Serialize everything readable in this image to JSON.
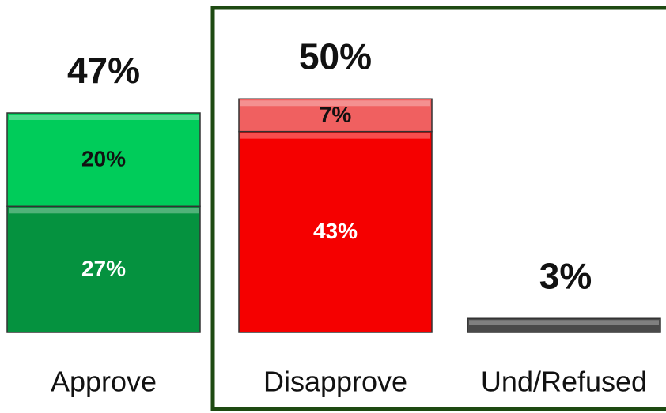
{
  "chart_data": {
    "type": "stacked_bar",
    "categories": [
      "Approve",
      "Disapprove",
      "Und/Refused"
    ],
    "series": [
      {
        "colors": [
          "#05923f",
          "#f50000",
          "#4a4a4a"
        ],
        "label_color": "#ffffff",
        "values": [
          27,
          43,
          3
        ],
        "value_labels": [
          "27%",
          "43%",
          null
        ]
      },
      {
        "colors": [
          "#00cc5a",
          "#f06060",
          null
        ],
        "label_color": "#111111",
        "values": [
          20,
          7,
          null
        ],
        "value_labels": [
          "20%",
          "7%",
          null
        ]
      }
    ],
    "totals": [
      47,
      50,
      3
    ],
    "total_labels": [
      "47%",
      "50%",
      "3%"
    ],
    "ylim": [
      0,
      70.5
    ]
  }
}
